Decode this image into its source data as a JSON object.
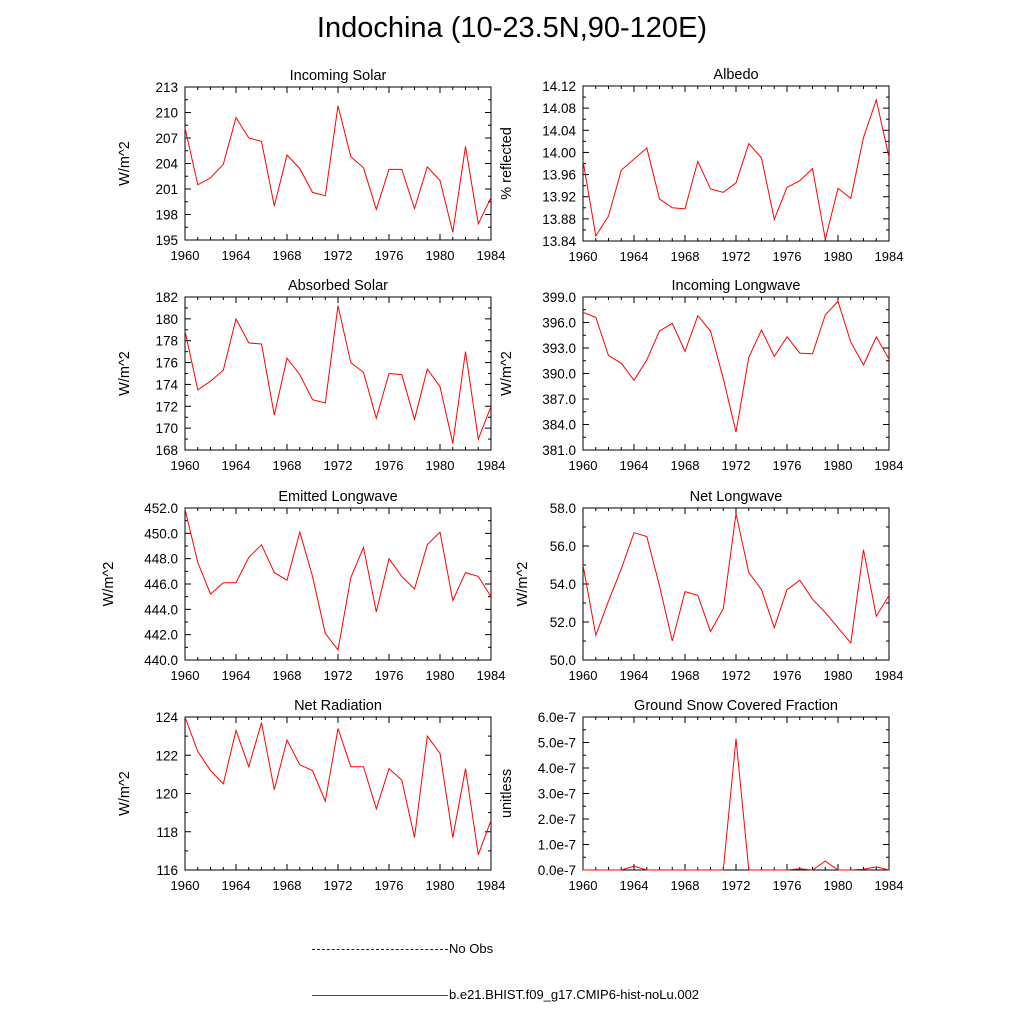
{
  "title": "Indochina (10-23.5N,90-120E)",
  "colors": {
    "model": "#ff0000",
    "obs": "#0000ff",
    "axes": "#000000"
  },
  "legend": [
    {
      "label": "No Obs",
      "style": "dashed",
      "color": "#0000ff"
    },
    {
      "label": "b.e21.BHIST.f09_g17.CMIP6-hist-noLu.002",
      "style": "solid",
      "color": "#ff0000"
    }
  ],
  "chart_data": [
    {
      "type": "line",
      "title": "Incoming Solar",
      "ylabel": "W/m^2",
      "xlabel": "",
      "xlim": [
        1960,
        1984
      ],
      "ylim": [
        195,
        213
      ],
      "xticks": [
        "1960",
        "1964",
        "1968",
        "1972",
        "1976",
        "1980",
        "1984"
      ],
      "yticks": [
        "195",
        "198",
        "201",
        "204",
        "207",
        "210",
        "213"
      ],
      "x": [
        1960,
        1961,
        1962,
        1963,
        1964,
        1965,
        1966,
        1967,
        1968,
        1969,
        1970,
        1971,
        1972,
        1973,
        1974,
        1975,
        1976,
        1977,
        1978,
        1979,
        1980,
        1981,
        1982,
        1983,
        1984
      ],
      "series": [
        {
          "name": "b.e21.BHIST.f09_g17.CMIP6-hist-noLu.002",
          "values": [
            208.2,
            201.5,
            202.3,
            203.9,
            209.4,
            207.0,
            206.6,
            199.0,
            205.0,
            203.4,
            200.6,
            200.2,
            210.8,
            204.8,
            203.5,
            198.6,
            203.3,
            203.3,
            198.7,
            203.6,
            202.0,
            195.9,
            206.0,
            196.9,
            200.0
          ]
        }
      ]
    },
    {
      "type": "line",
      "title": "Albedo",
      "ylabel": "% reflected",
      "xlabel": "",
      "xlim": [
        1960,
        1984
      ],
      "ylim": [
        13.84,
        14.12
      ],
      "xticks": [
        "1960",
        "1964",
        "1968",
        "1972",
        "1976",
        "1980",
        "1984"
      ],
      "yticks": [
        "13.84",
        "13.88",
        "13.92",
        "13.96",
        "14.00",
        "14.04",
        "14.08",
        "14.12"
      ],
      "x": [
        1960,
        1961,
        1962,
        1963,
        1964,
        1965,
        1966,
        1967,
        1968,
        1969,
        1970,
        1971,
        1972,
        1973,
        1974,
        1975,
        1976,
        1977,
        1978,
        1979,
        1980,
        1981,
        1982,
        1983,
        1984
      ],
      "series": [
        {
          "name": "b.e21.BHIST.f09_g17.CMIP6-hist-noLu.002",
          "values": [
            13.985,
            13.849,
            13.885,
            13.968,
            13.988,
            14.008,
            13.916,
            13.9,
            13.898,
            13.984,
            13.934,
            13.928,
            13.945,
            14.016,
            13.99,
            13.879,
            13.937,
            13.949,
            13.971,
            13.843,
            13.935,
            13.917,
            14.027,
            14.095,
            13.991
          ]
        }
      ]
    },
    {
      "type": "line",
      "title": "Absorbed Solar",
      "ylabel": "W/m^2",
      "xlabel": "",
      "xlim": [
        1960,
        1984
      ],
      "ylim": [
        168,
        182
      ],
      "xticks": [
        "1960",
        "1964",
        "1968",
        "1972",
        "1976",
        "1980",
        "1984"
      ],
      "yticks": [
        "168",
        "170",
        "172",
        "174",
        "176",
        "178",
        "180",
        "182"
      ],
      "x": [
        1960,
        1961,
        1962,
        1963,
        1964,
        1965,
        1966,
        1967,
        1968,
        1969,
        1970,
        1971,
        1972,
        1973,
        1974,
        1975,
        1976,
        1977,
        1978,
        1979,
        1980,
        1981,
        1982,
        1983,
        1984
      ],
      "series": [
        {
          "name": "b.e21.BHIST.f09_g17.CMIP6-hist-noLu.002",
          "values": [
            178.9,
            173.5,
            174.3,
            175.3,
            180.0,
            177.8,
            177.7,
            171.2,
            176.4,
            174.9,
            172.6,
            172.3,
            181.2,
            176.0,
            175.1,
            170.9,
            175.0,
            174.9,
            170.8,
            175.4,
            173.8,
            168.6,
            177.0,
            169.0,
            172.0
          ]
        }
      ]
    },
    {
      "type": "line",
      "title": "Incoming Longwave",
      "ylabel": "W/m^2",
      "xlabel": "",
      "xlim": [
        1960,
        1984
      ],
      "ylim": [
        381.0,
        399.0
      ],
      "xticks": [
        "1960",
        "1964",
        "1968",
        "1972",
        "1976",
        "1980",
        "1984"
      ],
      "yticks": [
        "381.0",
        "384.0",
        "387.0",
        "390.0",
        "393.0",
        "396.0",
        "399.0"
      ],
      "x": [
        1960,
        1961,
        1962,
        1963,
        1964,
        1965,
        1966,
        1967,
        1968,
        1969,
        1970,
        1971,
        1972,
        1973,
        1974,
        1975,
        1976,
        1977,
        1978,
        1979,
        1980,
        1981,
        1982,
        1983,
        1984
      ],
      "series": [
        {
          "name": "b.e21.BHIST.f09_g17.CMIP6-hist-noLu.002",
          "values": [
            397.2,
            396.6,
            392.1,
            391.2,
            389.2,
            391.6,
            395.0,
            395.9,
            392.6,
            396.8,
            395.0,
            389.4,
            383.1,
            391.9,
            395.1,
            392.0,
            394.3,
            392.4,
            392.3,
            396.9,
            398.5,
            393.7,
            391.0,
            394.3,
            391.7
          ]
        }
      ]
    },
    {
      "type": "line",
      "title": "Emitted Longwave",
      "ylabel": "W/m^2",
      "xlabel": "",
      "xlim": [
        1960,
        1984
      ],
      "ylim": [
        440.0,
        452.0
      ],
      "xticks": [
        "1960",
        "1964",
        "1968",
        "1972",
        "1976",
        "1980",
        "1984"
      ],
      "yticks": [
        "440.0",
        "442.0",
        "444.0",
        "446.0",
        "448.0",
        "450.0",
        "452.0"
      ],
      "x": [
        1960,
        1961,
        1962,
        1963,
        1964,
        1965,
        1966,
        1967,
        1968,
        1969,
        1970,
        1971,
        1972,
        1973,
        1974,
        1975,
        1976,
        1977,
        1978,
        1979,
        1980,
        1981,
        1982,
        1983,
        1984
      ],
      "series": [
        {
          "name": "b.e21.BHIST.f09_g17.CMIP6-hist-noLu.002",
          "values": [
            451.9,
            447.7,
            445.2,
            446.1,
            446.1,
            448.1,
            449.1,
            446.9,
            446.3,
            450.1,
            446.6,
            442.1,
            440.8,
            446.5,
            448.9,
            443.8,
            448.0,
            446.6,
            445.6,
            449.1,
            450.1,
            444.7,
            446.9,
            446.6,
            445.0
          ]
        }
      ]
    },
    {
      "type": "line",
      "title": "Net Longwave",
      "ylabel": "W/m^2",
      "xlabel": "",
      "xlim": [
        1960,
        1984
      ],
      "ylim": [
        50.0,
        58.0
      ],
      "xticks": [
        "1960",
        "1964",
        "1968",
        "1972",
        "1976",
        "1980",
        "1984"
      ],
      "yticks": [
        "50.0",
        "52.0",
        "54.0",
        "56.0",
        "58.0"
      ],
      "x": [
        1960,
        1961,
        1962,
        1963,
        1964,
        1965,
        1966,
        1967,
        1968,
        1969,
        1970,
        1971,
        1972,
        1973,
        1974,
        1975,
        1976,
        1977,
        1978,
        1979,
        1980,
        1981,
        1982,
        1983,
        1984
      ],
      "series": [
        {
          "name": "b.e21.BHIST.f09_g17.CMIP6-hist-noLu.002",
          "values": [
            55.0,
            51.3,
            53.1,
            54.8,
            56.7,
            56.5,
            53.9,
            51.0,
            53.6,
            53.4,
            51.5,
            52.7,
            57.7,
            54.6,
            53.7,
            51.7,
            53.7,
            54.2,
            53.2,
            52.5,
            51.7,
            50.9,
            55.8,
            52.3,
            53.4
          ]
        }
      ]
    },
    {
      "type": "line",
      "title": "Net Radiation",
      "ylabel": "W/m^2",
      "xlabel": "",
      "xlim": [
        1960,
        1984
      ],
      "ylim": [
        116,
        124
      ],
      "xticks": [
        "1960",
        "1964",
        "1968",
        "1972",
        "1976",
        "1980",
        "1984"
      ],
      "yticks": [
        "116",
        "118",
        "120",
        "122",
        "124"
      ],
      "x": [
        1960,
        1961,
        1962,
        1963,
        1964,
        1965,
        1966,
        1967,
        1968,
        1969,
        1970,
        1971,
        1972,
        1973,
        1974,
        1975,
        1976,
        1977,
        1978,
        1979,
        1980,
        1981,
        1982,
        1983,
        1984
      ],
      "series": [
        {
          "name": "b.e21.BHIST.f09_g17.CMIP6-hist-noLu.002",
          "values": [
            124.0,
            122.2,
            121.2,
            120.5,
            123.3,
            121.4,
            123.7,
            120.2,
            122.8,
            121.5,
            121.2,
            119.6,
            123.4,
            121.4,
            121.4,
            119.2,
            121.3,
            120.7,
            117.7,
            123.0,
            122.1,
            117.7,
            121.3,
            116.8,
            118.6
          ]
        }
      ]
    },
    {
      "type": "line",
      "title": "Ground Snow Covered Fraction",
      "ylabel": "unitless",
      "xlabel": "",
      "xlim": [
        1960,
        1984
      ],
      "ylim": [
        0,
        6e-07
      ],
      "xticks": [
        "1960",
        "1964",
        "1968",
        "1972",
        "1976",
        "1980",
        "1984"
      ],
      "yticks": [
        "0.0e-7",
        "1.0e-7",
        "2.0e-7",
        "3.0e-7",
        "4.0e-7",
        "5.0e-7",
        "6.0e-7"
      ],
      "x": [
        1960,
        1961,
        1962,
        1963,
        1964,
        1965,
        1966,
        1967,
        1968,
        1969,
        1970,
        1971,
        1972,
        1973,
        1974,
        1975,
        1976,
        1977,
        1978,
        1979,
        1980,
        1981,
        1982,
        1983,
        1984
      ],
      "series": [
        {
          "name": "b.e21.BHIST.f09_g17.CMIP6-hist-noLu.002",
          "values": [
            0,
            0,
            0,
            0,
            1.5e-08,
            0,
            0,
            0,
            0,
            0,
            0,
            0,
            5.15e-07,
            0,
            0,
            0,
            0,
            5e-09,
            0,
            3.5e-08,
            0,
            0,
            3e-09,
            1.2e-08,
            0
          ]
        }
      ]
    }
  ]
}
